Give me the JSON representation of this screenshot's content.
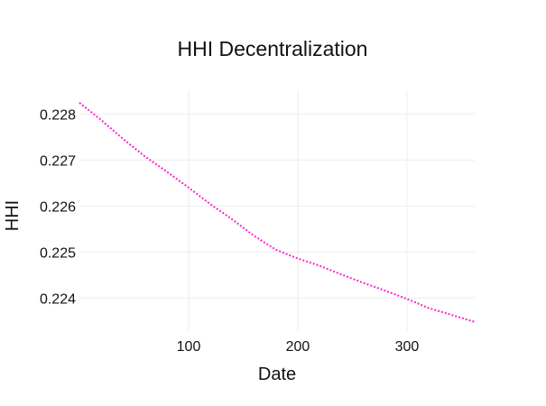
{
  "chart_data": {
    "type": "line",
    "title": "HHI Decentralization",
    "xlabel": "Date",
    "ylabel": "HHI",
    "xlim": [
      0,
      362
    ],
    "ylim": [
      0.22328,
      0.22852
    ],
    "x_ticks": [
      100,
      200,
      300
    ],
    "y_ticks": [
      0.224,
      0.225,
      0.226,
      0.227,
      0.228
    ],
    "x_tick_labels": [
      "100",
      "200",
      "300"
    ],
    "y_tick_labels": [
      "0.224",
      "0.225",
      "0.226",
      "0.227",
      "0.228"
    ],
    "grid": true,
    "series": [
      {
        "name": "HHI",
        "color": "#ff22cc",
        "style": "dotted",
        "x": [
          0,
          20,
          40,
          60,
          80,
          100,
          120,
          140,
          160,
          180,
          200,
          220,
          240,
          260,
          280,
          300,
          320,
          340,
          362
        ],
        "y": [
          0.22825,
          0.22787,
          0.22746,
          0.22708,
          0.22675,
          0.2264,
          0.22604,
          0.22571,
          0.22535,
          0.22505,
          0.22486,
          0.2247,
          0.22451,
          0.22433,
          0.22416,
          0.22398,
          0.22378,
          0.22364,
          0.22348
        ]
      }
    ]
  }
}
